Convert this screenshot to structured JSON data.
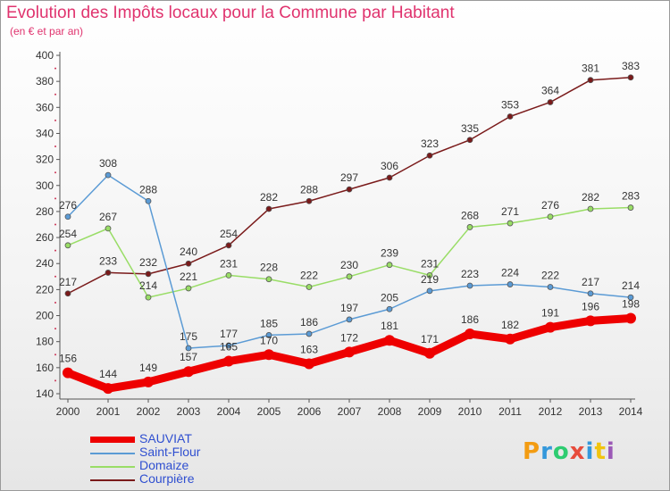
{
  "header": {
    "title": "Evolution des Impôts locaux pour la Commune par Habitant",
    "subtitle": "(en € et par an)"
  },
  "logo": {
    "letters": [
      "P",
      "r",
      "o",
      "x",
      "i",
      "t",
      "i"
    ],
    "colors": [
      "#f39c12",
      "#3498db",
      "#2ecc71",
      "#e74c3c",
      "#3498db",
      "#f1c40f",
      "#9b59b6"
    ]
  },
  "chart_data": {
    "type": "line",
    "x": [
      "2000",
      "2001",
      "2002",
      "2003",
      "2004",
      "2005",
      "2006",
      "2007",
      "2008",
      "2009",
      "2010",
      "2011",
      "2012",
      "2013",
      "2014"
    ],
    "ylim": [
      140,
      400
    ],
    "yticks": [
      140,
      160,
      180,
      200,
      220,
      240,
      260,
      280,
      300,
      320,
      340,
      360,
      380,
      400
    ],
    "grid": false,
    "legend_position": "bottom-left",
    "series": [
      {
        "name": "SAUVIAT",
        "color": "#ee0000",
        "width": 9,
        "marker_r": 6,
        "values": [
          156,
          144,
          149,
          157,
          165,
          170,
          163,
          172,
          181,
          171,
          186,
          182,
          191,
          196,
          198
        ]
      },
      {
        "name": "Saint-Flour",
        "color": "#5b9bd5",
        "width": 1.5,
        "marker_r": 3,
        "values": [
          276,
          308,
          288,
          175,
          177,
          185,
          186,
          197,
          205,
          219,
          223,
          224,
          222,
          217,
          214
        ]
      },
      {
        "name": "Domaize",
        "color": "#99dd66",
        "width": 1.5,
        "marker_r": 3,
        "values": [
          254,
          267,
          214,
          221,
          231,
          228,
          222,
          230,
          239,
          231,
          268,
          271,
          276,
          282,
          283
        ]
      },
      {
        "name": "Courpière",
        "color": "#7a1a1a",
        "width": 1.5,
        "marker_r": 3,
        "values": [
          217,
          233,
          232,
          240,
          254,
          282,
          288,
          297,
          306,
          323,
          335,
          353,
          364,
          381,
          383
        ]
      }
    ]
  }
}
